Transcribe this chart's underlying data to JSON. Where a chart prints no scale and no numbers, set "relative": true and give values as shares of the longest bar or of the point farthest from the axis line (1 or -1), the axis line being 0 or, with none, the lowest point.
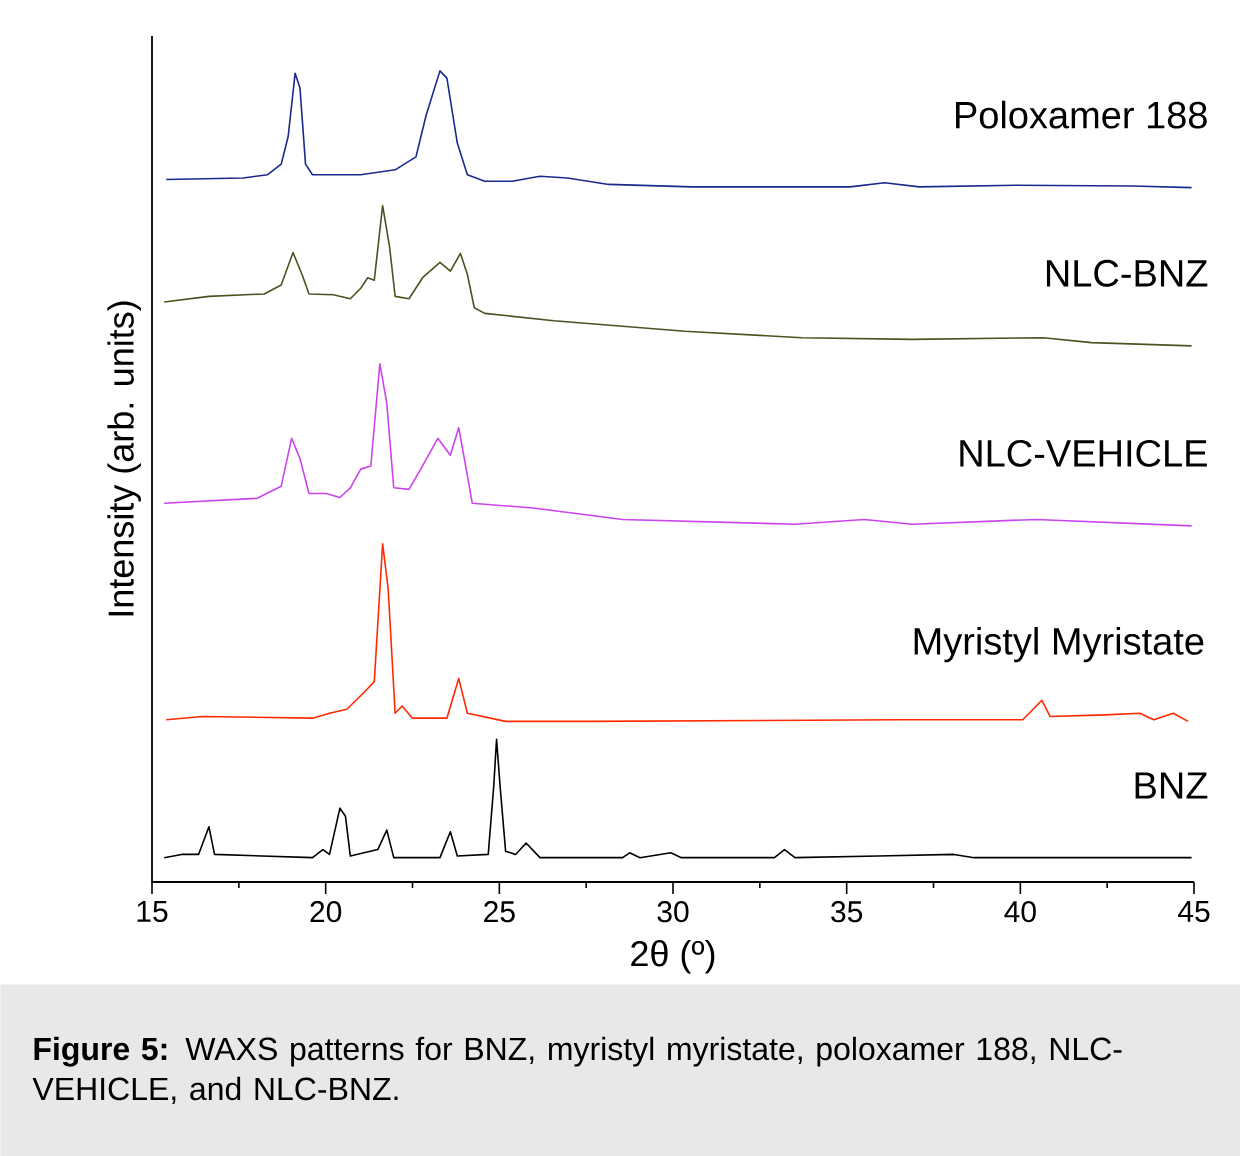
{
  "chart_data": {
    "type": "line",
    "relative": true,
    "xlabel": "2θ  (º)",
    "ylabel": "Intensity (arb. units)",
    "xlim": [
      15,
      45
    ],
    "xticks": [
      15,
      20,
      25,
      30,
      35,
      40,
      45
    ],
    "annotations": [
      "**Figure 5:** WAXS patterns for BNZ, myristyl myristate, poloxamer 188, NLC-VEHICLE, and NLC-BNZ."
    ],
    "series": [
      {
        "name": "Poloxamer 188",
        "color": "#1a2a8c",
        "x": [
          15.41,
          17.63,
          18.33,
          18.72,
          18.92,
          19.12,
          19.26,
          19.42,
          19.62,
          21.01,
          22.0,
          22.6,
          22.89,
          23.29,
          23.49,
          23.79,
          24.08,
          24.58,
          25.37,
          26.17,
          26.96,
          28.15,
          30.54,
          35.1,
          36.09,
          37.09,
          39.87,
          43.24,
          44.93
        ],
        "values": [
          0.866,
          0.868,
          0.872,
          0.885,
          0.919,
          0.997,
          0.979,
          0.885,
          0.872,
          0.872,
          0.878,
          0.894,
          0.945,
          1.0,
          0.991,
          0.911,
          0.872,
          0.864,
          0.864,
          0.87,
          0.868,
          0.86,
          0.857,
          0.857,
          0.862,
          0.857,
          0.859,
          0.858,
          0.856
        ]
      },
      {
        "name": "NLC-BNZ",
        "color": "#4b5320",
        "x": [
          15.35,
          16.64,
          18.23,
          18.72,
          19.06,
          19.32,
          19.52,
          20.22,
          20.71,
          21.01,
          21.21,
          21.4,
          21.64,
          21.84,
          22.0,
          22.4,
          22.79,
          23.29,
          23.59,
          23.88,
          24.08,
          24.28,
          24.58,
          26.57,
          30.34,
          33.71,
          36.89,
          40.66,
          42.05,
          44.93
        ],
        "values": [
          0.715,
          0.722,
          0.725,
          0.736,
          0.776,
          0.749,
          0.725,
          0.724,
          0.719,
          0.732,
          0.745,
          0.742,
          0.834,
          0.783,
          0.722,
          0.719,
          0.745,
          0.764,
          0.753,
          0.775,
          0.749,
          0.708,
          0.701,
          0.692,
          0.679,
          0.671,
          0.669,
          0.671,
          0.665,
          0.661
        ]
      },
      {
        "name": "NLC-VEHICLE",
        "color": "#cc44ee",
        "x": [
          15.35,
          18.03,
          18.72,
          19.02,
          19.26,
          19.52,
          20.01,
          20.41,
          20.71,
          21.01,
          21.3,
          21.56,
          21.76,
          21.96,
          22.4,
          22.79,
          23.23,
          23.59,
          23.83,
          24.03,
          24.22,
          25.97,
          28.55,
          33.51,
          35.5,
          36.89,
          40.46,
          44.93
        ],
        "values": [
          0.467,
          0.473,
          0.488,
          0.547,
          0.522,
          0.479,
          0.479,
          0.474,
          0.486,
          0.509,
          0.513,
          0.639,
          0.59,
          0.486,
          0.484,
          0.513,
          0.547,
          0.526,
          0.56,
          0.513,
          0.467,
          0.461,
          0.447,
          0.441,
          0.447,
          0.441,
          0.447,
          0.439
        ]
      },
      {
        "name": "Myristyl Myristate",
        "color": "#ff2a00",
        "x": [
          15.41,
          16.44,
          19.62,
          20.11,
          20.61,
          21.11,
          21.4,
          21.64,
          21.8,
          22.0,
          22.2,
          22.5,
          23.49,
          23.83,
          24.08,
          25.18,
          27.56,
          36.5,
          40.07,
          40.62,
          40.86,
          42.45,
          43.44,
          43.84,
          44.4,
          44.83
        ],
        "values": [
          0.2,
          0.204,
          0.202,
          0.208,
          0.213,
          0.234,
          0.247,
          0.417,
          0.361,
          0.208,
          0.217,
          0.202,
          0.202,
          0.251,
          0.208,
          0.198,
          0.198,
          0.2,
          0.2,
          0.224,
          0.204,
          0.206,
          0.208,
          0.2,
          0.208,
          0.198
        ]
      },
      {
        "name": "BNZ",
        "color": "#000000",
        "x": [
          15.35,
          15.85,
          16.34,
          16.64,
          16.8,
          19.62,
          19.92,
          20.11,
          20.41,
          20.57,
          20.71,
          21.5,
          21.76,
          21.96,
          23.29,
          23.59,
          23.79,
          24.68,
          24.84,
          24.92,
          25.02,
          25.18,
          25.47,
          25.77,
          26.17,
          28.55,
          28.75,
          29.05,
          29.94,
          30.24,
          32.92,
          33.21,
          33.51,
          35.9,
          38.09,
          38.67,
          44.93
        ],
        "values": [
          0.03,
          0.034,
          0.034,
          0.068,
          0.034,
          0.03,
          0.04,
          0.034,
          0.091,
          0.081,
          0.032,
          0.04,
          0.064,
          0.03,
          0.03,
          0.062,
          0.032,
          0.034,
          0.119,
          0.176,
          0.119,
          0.038,
          0.034,
          0.048,
          0.03,
          0.03,
          0.036,
          0.03,
          0.036,
          0.03,
          0.03,
          0.04,
          0.03,
          0.032,
          0.034,
          0.03,
          0.03
        ]
      }
    ]
  }
}
